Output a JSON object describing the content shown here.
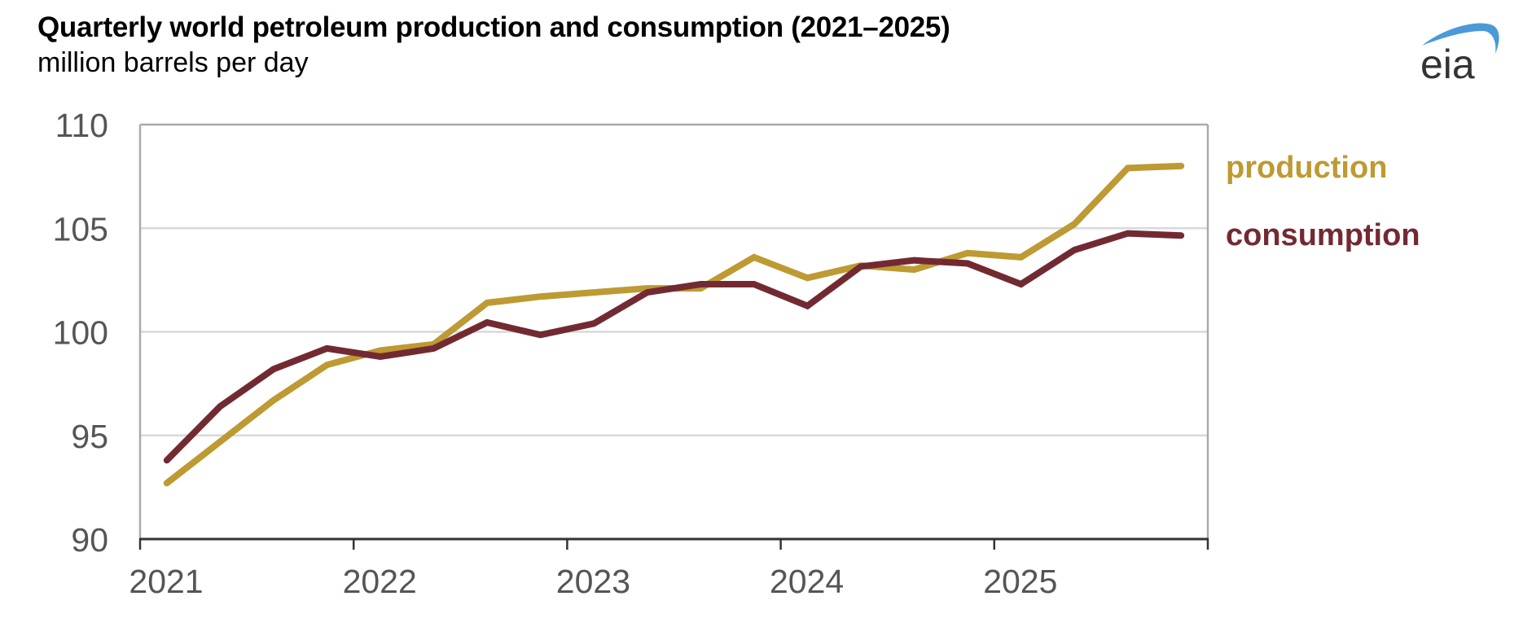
{
  "header": {
    "title": "Quarterly world petroleum production and consumption (2021–2025)",
    "subtitle": "million barrels per day"
  },
  "logo": {
    "text": "eia",
    "arc_color": "#4A9AD8",
    "text_color": "#333333"
  },
  "chart_data": {
    "type": "line",
    "title": "Quarterly world petroleum production and consumption (2021–2025)",
    "subtitle": "million barrels per day",
    "xlabel": "",
    "ylabel": "million barrels per day",
    "x": [
      "2021Q1",
      "2021Q2",
      "2021Q3",
      "2021Q4",
      "2022Q1",
      "2022Q2",
      "2022Q3",
      "2022Q4",
      "2023Q1",
      "2023Q2",
      "2023Q3",
      "2023Q4",
      "2024Q1",
      "2024Q2",
      "2024Q3",
      "2024Q4",
      "2025Q1",
      "2025Q2",
      "2025Q3",
      "2025Q4"
    ],
    "xlim": [
      2021,
      2026
    ],
    "ylim": [
      90,
      110
    ],
    "yticks": [
      90,
      95,
      100,
      105,
      110
    ],
    "ytick_labels": [
      "90",
      "95",
      "100",
      "105",
      "110"
    ],
    "xticks": [
      2021,
      2022,
      2023,
      2024,
      2025,
      2026
    ],
    "xtick_labels": [
      "2021",
      "2022",
      "2023",
      "2024",
      "2025"
    ],
    "grid": true,
    "legend": "right",
    "series": [
      {
        "name": "production",
        "color": "#BD9A33",
        "values": [
          92.7,
          94.7,
          96.7,
          98.4,
          99.1,
          99.4,
          101.4,
          101.7,
          101.9,
          102.1,
          102.1,
          103.6,
          102.6,
          103.2,
          103.0,
          103.8,
          103.6,
          105.2,
          107.9,
          108.0
        ]
      },
      {
        "name": "consumption",
        "color": "#722A32",
        "values": [
          93.8,
          96.4,
          98.2,
          99.2,
          98.8,
          99.2,
          100.45,
          99.85,
          100.4,
          101.9,
          102.3,
          102.3,
          101.25,
          103.15,
          103.45,
          103.3,
          102.3,
          103.95,
          104.75,
          104.65
        ]
      }
    ]
  }
}
